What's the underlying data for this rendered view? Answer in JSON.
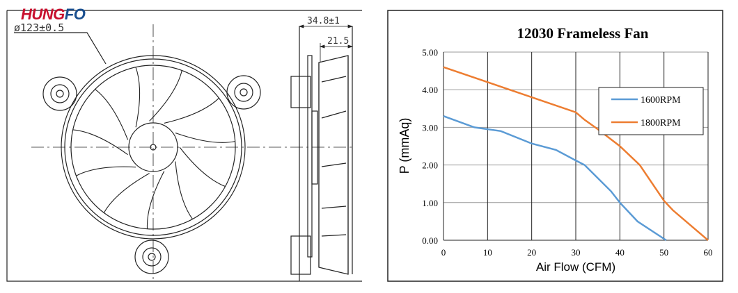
{
  "logo": {
    "text_red": "HUNG",
    "text_blue": "FO",
    "red": "#c8102e",
    "blue": "#1a4f8f"
  },
  "drawing": {
    "diameter_label": "ø123±0.5",
    "depth_total_label": "34.8±1",
    "depth_blade_label": "21.5"
  },
  "chart_data": {
    "type": "line",
    "title": "12030 Frameless Fan",
    "xlabel": "Air Flow (CFM)",
    "ylabel": "P (mmAq)",
    "xlim": [
      0,
      60
    ],
    "ylim": [
      0,
      5
    ],
    "xticks": [
      "0",
      "10",
      "20",
      "30",
      "40",
      "50",
      "60"
    ],
    "yticks": [
      "0.00",
      "1.00",
      "2.00",
      "3.00",
      "4.00",
      "5.00"
    ],
    "grid": true,
    "legend_position": "right",
    "series": [
      {
        "name": "1600RPM",
        "color": "#5b9bd5",
        "x": [
          0,
          7,
          13,
          20,
          25.5,
          30,
          32,
          38,
          40,
          44,
          50.5
        ],
        "y": [
          3.3,
          3.0,
          2.9,
          2.57,
          2.4,
          2.12,
          2.0,
          1.3,
          1.0,
          0.5,
          0
        ]
      },
      {
        "name": "1800RPM",
        "color": "#ed7d31",
        "x": [
          0,
          10,
          20,
          30,
          32,
          35,
          40,
          44.5,
          50,
          52,
          60
        ],
        "y": [
          4.6,
          4.2,
          3.8,
          3.4,
          3.2,
          2.95,
          2.5,
          2.0,
          1.05,
          0.8,
          0
        ]
      }
    ]
  }
}
